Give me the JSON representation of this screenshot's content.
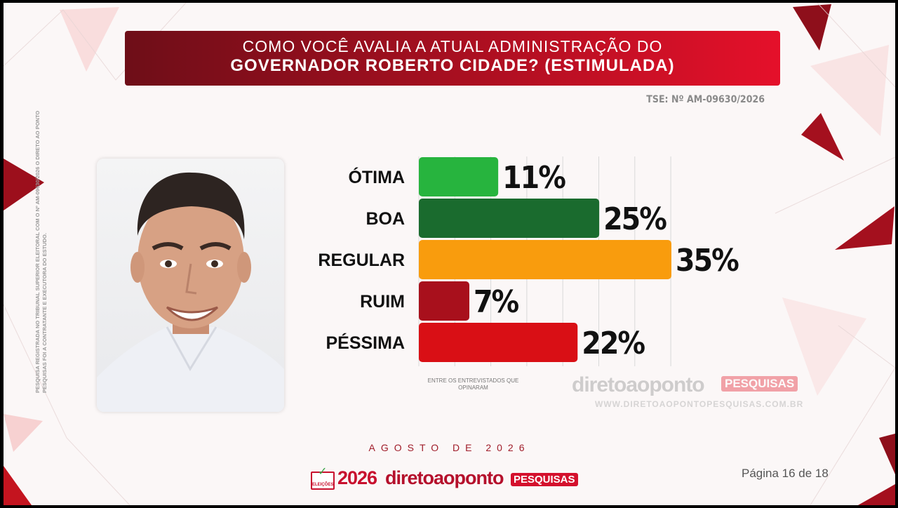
{
  "title": {
    "line1": "COMO VOCÊ AVALIA A ATUAL ADMINISTRAÇÃO DO",
    "line2": "GOVERNADOR ROBERTO CIDADE? (ESTIMULADA)"
  },
  "registration": "TSE: Nº AM-09630/2026",
  "side_note": "PESQUISA REGISTRADA NO TRIBUNAL SUPERIOR ELEITORAL COM O Nº AM-09630/2026 O DIRETO AO PONTO PESQUISAS FOI A CONTRATANTE E EXECUTORA DO ESTUDO.",
  "chart_data": {
    "type": "bar",
    "orientation": "horizontal",
    "categories": [
      "ÓTIMA",
      "BOA",
      "REGULAR",
      "RUIM",
      "PÉSSIMA"
    ],
    "values": [
      11,
      25,
      35,
      7,
      22
    ],
    "value_labels": [
      "11%",
      "25%",
      "35%",
      "7%",
      "22%"
    ],
    "colors": [
      "#27b43e",
      "#1a6b2e",
      "#f99c0d",
      "#a8101c",
      "#d90f15"
    ],
    "xlim": [
      0,
      35
    ],
    "grid": true,
    "footnote": "ENTRE OS ENTREVISTADOS QUE OPINARAM"
  },
  "watermark": {
    "wordmark": "diretoaoponto",
    "tag": "PESQUISAS",
    "site": "WWW.DIRETOAOPONTOPESQUISAS.COM.BR"
  },
  "date": "AGOSTO DE 2026",
  "footer": {
    "badge": "ELEIÇÕES",
    "year": "2026",
    "wordmark": "diretoaoponto",
    "tag": "PESQUISAS"
  },
  "page": "Página 16 de 18",
  "colors": {
    "banner_dark": "#6e0e18",
    "banner_bright": "#e5102a",
    "brand_red": "#c8102e"
  }
}
